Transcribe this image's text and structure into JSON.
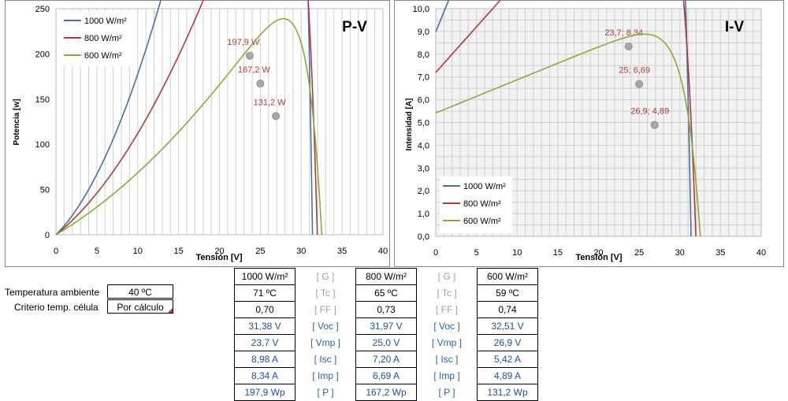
{
  "chart_data": [
    {
      "type": "line",
      "title": "P-V",
      "xlabel": "Tensión [V]",
      "ylabel": "Potencia [w]",
      "xlim": [
        0,
        40
      ],
      "ylim": [
        0,
        250
      ],
      "xticks": [
        0,
        5,
        10,
        15,
        20,
        25,
        30,
        35,
        40
      ],
      "yticks": [
        0,
        50,
        100,
        150,
        200,
        250
      ],
      "grid": "vertical",
      "legend": "top-left",
      "series": [
        {
          "name": "1000 W/m²",
          "color": "#4a6fa5",
          "vmp": 23.7,
          "imp": 8.34,
          "isc": 8.98,
          "voc": 31.38,
          "marker": {
            "x": 23.7,
            "y": 197.9,
            "label": "197,9 W"
          }
        },
        {
          "name": "800 W/m²",
          "color": "#b03a3a",
          "vmp": 25.0,
          "imp": 6.69,
          "isc": 7.2,
          "voc": 31.97,
          "marker": {
            "x": 25.0,
            "y": 167.2,
            "label": "167,2 W"
          }
        },
        {
          "name": "600 W/m²",
          "color": "#8aaa3c",
          "vmp": 26.9,
          "imp": 4.89,
          "isc": 5.42,
          "voc": 32.51,
          "marker": {
            "x": 26.9,
            "y": 131.2,
            "label": "131,2 W"
          }
        }
      ]
    },
    {
      "type": "line",
      "title": "I-V",
      "xlabel": "Tensión [V]",
      "ylabel": "Intensidad [A]",
      "xlim": [
        0,
        40
      ],
      "ylim": [
        0,
        10
      ],
      "xticks": [
        0,
        5,
        10,
        15,
        20,
        25,
        30,
        35,
        40
      ],
      "yticks": [
        "0,0",
        "1,0",
        "2,0",
        "3,0",
        "4,0",
        "5,0",
        "6,0",
        "7,0",
        "8,0",
        "9,0",
        "10,0"
      ],
      "grid": "both",
      "legend": "bottom-left",
      "series": [
        {
          "name": "1000 W/m²",
          "color": "#4a6fa5",
          "marker": {
            "x": 23.7,
            "y": 8.34,
            "label": "23,7; 8,34"
          }
        },
        {
          "name": "800 W/m²",
          "color": "#b03a3a",
          "marker": {
            "x": 25.0,
            "y": 6.69,
            "label": "25; 6,69"
          }
        },
        {
          "name": "600 W/m²",
          "color": "#8aaa3c",
          "marker": {
            "x": 26.9,
            "y": 4.89,
            "label": "26,9; 4,89"
          }
        }
      ]
    }
  ],
  "inputs": {
    "temp_label": "Temperatura ambiente",
    "temp_value": "40 ºC",
    "crit_label": "Criterio temp. célula",
    "crit_value": "Por cálculo"
  },
  "table": {
    "keys": [
      "[ G ]",
      "[ Tc ]",
      "[ FF ]",
      "[ Voc ]",
      "[ Vmp ]",
      "[ Isc ]",
      "[ Imp ]",
      "[ P ]"
    ],
    "col1": [
      "1000 W/m²",
      "71 ºC",
      "0,70",
      "31,38 V",
      "23,7 V",
      "8,98 A",
      "8,34 A",
      "197,9 Wp"
    ],
    "col2": [
      "800 W/m²",
      "65 ºC",
      "0,73",
      "31,97 V",
      "25,0 V",
      "7,20 A",
      "6,69 A",
      "167,2 Wp"
    ],
    "col3": [
      "600 W/m²",
      "59 ºC",
      "0,74",
      "32,51 V",
      "26,9 V",
      "5,42 A",
      "4,89 A",
      "131,2 Wp"
    ]
  }
}
